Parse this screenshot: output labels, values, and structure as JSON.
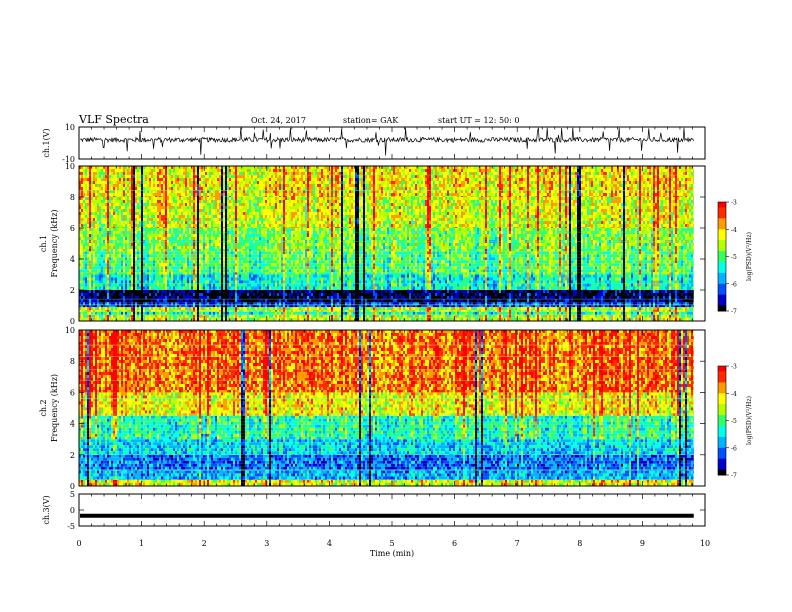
{
  "header": {
    "title": "VLF Spectra",
    "date": "Oct. 24, 2017",
    "station": "station= GAK",
    "start": "start  UT  =   12: 50: 0"
  },
  "chart_data": [
    {
      "panel": "ch1-waveform",
      "type": "line",
      "ylabel": "ch.1(V)",
      "ylim": [
        -10,
        10
      ],
      "yticks": [
        "10",
        "-10"
      ],
      "x_unit": "min",
      "xlim": [
        0,
        10
      ],
      "data_end_x": 9.82,
      "description_value": "noisy waveform centered near +2 V with spikes"
    },
    {
      "panel": "ch1-spectrogram",
      "type": "heatmap",
      "ylabel": "ch.1\nFrequency (kHz)",
      "ylim": [
        0,
        10
      ],
      "yticks": [
        "0",
        "2",
        "4",
        "6",
        "8",
        "10"
      ],
      "xlim": [
        0,
        10
      ],
      "data_end_x": 9.82,
      "colorbar": {
        "label": "log(PSD)(V²/Hz)",
        "range": [
          -7,
          -3
        ],
        "ticks": [
          "-3",
          "-4",
          "-5",
          "-6",
          "-7"
        ]
      },
      "frequency_levels": [
        {
          "f": [
            0.0,
            0.4
          ],
          "level": -4.6
        },
        {
          "f": [
            0.4,
            0.6
          ],
          "level": -5.3
        },
        {
          "f": [
            0.6,
            0.9
          ],
          "level": -4.5
        },
        {
          "f": [
            0.9,
            1.2
          ],
          "level": -6.3
        },
        {
          "f": [
            1.2,
            2.0
          ],
          "level": -6.9
        },
        {
          "f": [
            2.0,
            3.0
          ],
          "level": -5.4
        },
        {
          "f": [
            3.0,
            4.5
          ],
          "level": -5.0
        },
        {
          "f": [
            4.5,
            6.0
          ],
          "level": -4.8
        },
        {
          "f": [
            6.0,
            8.0
          ],
          "level": -4.4
        },
        {
          "f": [
            8.0,
            10.0
          ],
          "level": -4.2
        }
      ]
    },
    {
      "panel": "ch2-spectrogram",
      "type": "heatmap",
      "ylabel": "ch.2\nFrequency (kHz)",
      "ylim": [
        0,
        10
      ],
      "yticks": [
        "0",
        "2",
        "4",
        "6",
        "8",
        "10"
      ],
      "xlim": [
        0,
        10
      ],
      "data_end_x": 9.82,
      "colorbar": {
        "label": "log(PSD)(V²/Hz)",
        "range": [
          -7,
          -3
        ],
        "ticks": [
          "-3",
          "-4",
          "-5",
          "-6",
          "-7"
        ]
      },
      "frequency_levels": [
        {
          "f": [
            0.0,
            0.4
          ],
          "level": -4.3
        },
        {
          "f": [
            0.4,
            1.0
          ],
          "level": -5.8
        },
        {
          "f": [
            1.0,
            2.0
          ],
          "level": -6.1
        },
        {
          "f": [
            2.0,
            3.0
          ],
          "level": -5.6
        },
        {
          "f": [
            3.0,
            4.5
          ],
          "level": -5.2
        },
        {
          "f": [
            4.5,
            6.0
          ],
          "level": -4.2
        },
        {
          "f": [
            6.0,
            10.0
          ],
          "level": -3.6
        }
      ]
    },
    {
      "panel": "ch3-waveform",
      "type": "line",
      "ylabel": "ch.3(V)",
      "ylim": [
        -5,
        5
      ],
      "yticks": [
        "5",
        "0",
        "-5"
      ],
      "xlim": [
        0,
        10
      ],
      "data_end_x": 9.82,
      "constant_value": -1.8
    }
  ],
  "xaxis": {
    "label": "Time (min)",
    "ticks": [
      "0",
      "1",
      "2",
      "3",
      "4",
      "5",
      "6",
      "7",
      "8",
      "9",
      "10"
    ]
  },
  "colors": {
    "colormap": [
      "#000000",
      "#0000c8",
      "#0050ff",
      "#00b4ff",
      "#00ffe6",
      "#33ff66",
      "#b4ff00",
      "#ffff00",
      "#ff9a00",
      "#ff2a00",
      "#ff0000",
      "#ffffff"
    ]
  }
}
